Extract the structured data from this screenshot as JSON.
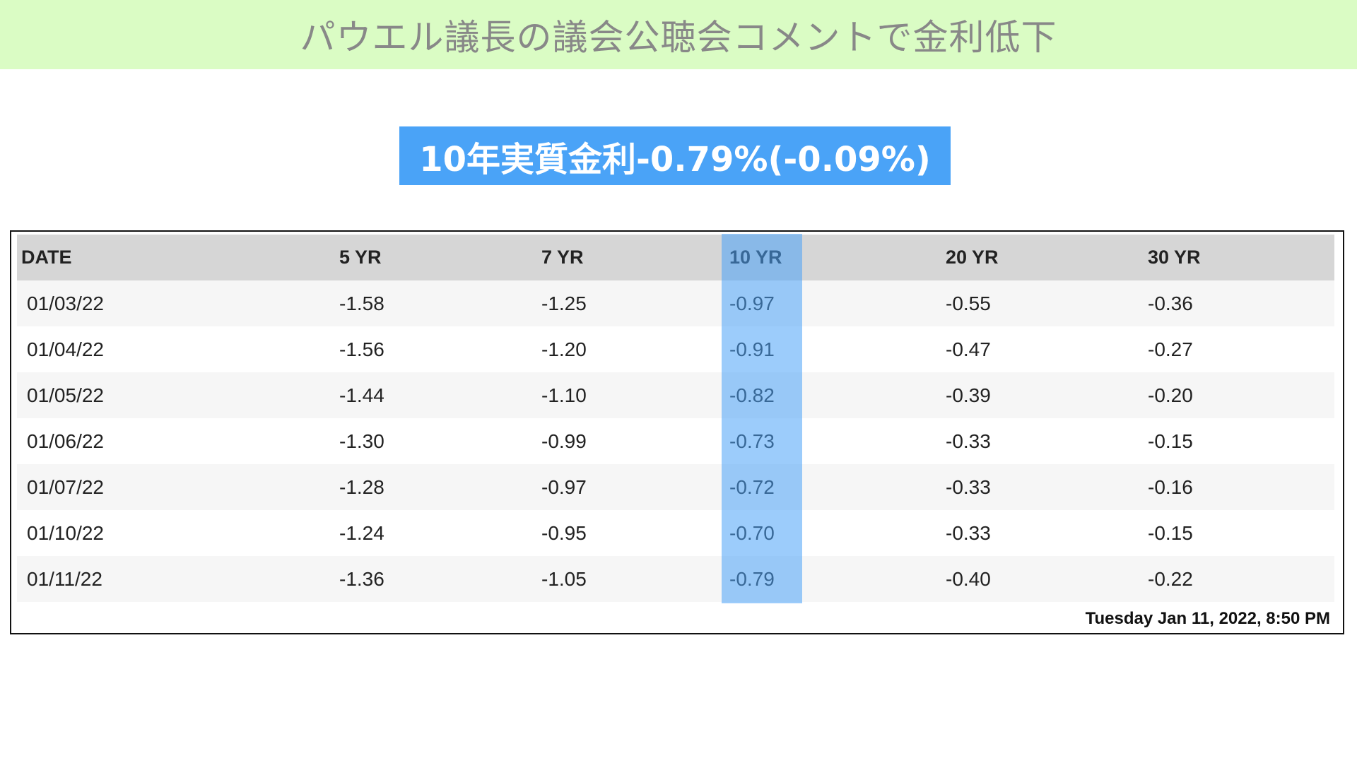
{
  "slide": {
    "title": "パウエル議長の議会公聴会コメントで金利低下",
    "callout": "10年実質金利-0.79%(-0.09%)",
    "colors": {
      "title_bg": "#dafcc4",
      "callout_bg": "#4aa3f7",
      "highlight_column": "#4aa3f7"
    }
  },
  "table": {
    "columns": [
      "DATE",
      "5 YR",
      "7 YR",
      "10 YR",
      "20 YR",
      "30 YR"
    ],
    "highlighted_column": "10 YR",
    "rows": [
      [
        "01/03/22",
        "-1.58",
        "-1.25",
        "-0.97",
        "-0.55",
        "-0.36"
      ],
      [
        "01/04/22",
        "-1.56",
        "-1.20",
        "-0.91",
        "-0.47",
        "-0.27"
      ],
      [
        "01/05/22",
        "-1.44",
        "-1.10",
        "-0.82",
        "-0.39",
        "-0.20"
      ],
      [
        "01/06/22",
        "-1.30",
        "-0.99",
        "-0.73",
        "-0.33",
        "-0.15"
      ],
      [
        "01/07/22",
        "-1.28",
        "-0.97",
        "-0.72",
        "-0.33",
        "-0.16"
      ],
      [
        "01/10/22",
        "-1.24",
        "-0.95",
        "-0.70",
        "-0.33",
        "-0.15"
      ],
      [
        "01/11/22",
        "-1.36",
        "-1.05",
        "-0.79",
        "-0.40",
        "-0.22"
      ]
    ],
    "timestamp": "Tuesday Jan 11, 2022, 8:50 PM"
  }
}
